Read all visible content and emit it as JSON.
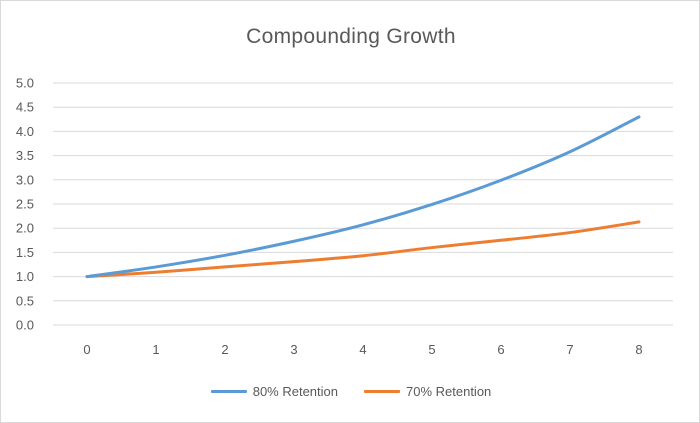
{
  "chart_data": {
    "type": "line",
    "title": "Compounding  Growth",
    "x": [
      0,
      1,
      2,
      3,
      4,
      5,
      6,
      7,
      8
    ],
    "series": [
      {
        "name": "80% Retention",
        "color": "#5b9bd5",
        "values": [
          1.0,
          1.2,
          1.44,
          1.73,
          2.07,
          2.49,
          2.99,
          3.58,
          4.3
        ]
      },
      {
        "name": "70% Retention",
        "color": "#ed7d31",
        "values": [
          1.0,
          1.09,
          1.2,
          1.31,
          1.43,
          1.6,
          1.75,
          1.91,
          2.13
        ]
      }
    ],
    "xlabel": "",
    "ylabel": "",
    "xlim": [
      0,
      8
    ],
    "ylim": [
      0,
      5
    ],
    "yticks": [
      "0.0",
      "0.5",
      "1.0",
      "1.5",
      "2.0",
      "2.5",
      "3.0",
      "3.5",
      "4.0",
      "4.5",
      "5.0"
    ],
    "xticks": [
      "0",
      "1",
      "2",
      "3",
      "4",
      "5",
      "6",
      "7",
      "8"
    ],
    "grid": true,
    "legend_position": "bottom"
  }
}
